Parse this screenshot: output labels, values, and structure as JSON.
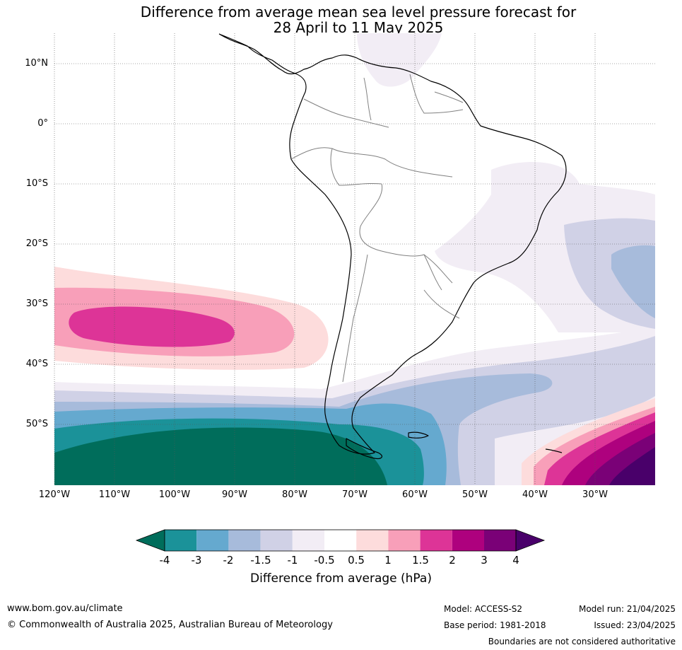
{
  "title": {
    "line1": "Difference from average mean sea level pressure forecast for",
    "line2": "28 April to 11 May 2025"
  },
  "map": {
    "latitude_labels": [
      "10°N",
      "0°",
      "10°S",
      "20°S",
      "30°S",
      "40°S",
      "50°S"
    ],
    "longitude_labels": [
      "120°W",
      "110°W",
      "100°W",
      "90°W",
      "80°W",
      "70°W",
      "60°W",
      "50°W",
      "40°W",
      "30°W"
    ]
  },
  "colorbar": {
    "tick_labels": [
      "-4",
      "-3",
      "-2",
      "-1.5",
      "-1",
      "-0.5",
      "0.5",
      "1",
      "1.5",
      "2",
      "3",
      "4"
    ],
    "colors": {
      "below_-4": "#006d5b",
      "-4_to_-3": "#1b9299",
      "-3_to_-2": "#65a9cf",
      "-2_to_-1.5": "#a7bbdb",
      "-1.5_to_-1": "#d0d1e6",
      "-1_to_-0.5": "#f2edf5",
      "-0.5_to_0.5": "#ffffff",
      "0.5_to_1": "#fddcdc",
      "1_to_1.5": "#f89fb9",
      "1.5_to_2": "#dd3497",
      "2_to_3": "#ae017e",
      "3_to_4": "#7a0177",
      "above_4": "#49006a"
    },
    "label": "Difference from average (hPa)"
  },
  "footer": {
    "url": "www.bom.gov.au/climate",
    "copyright": "© Commonwealth of Australia 2025, Australian Bureau of Meteorology",
    "model": "Model: ACCESS-S2",
    "base_period": "Base period: 1981-2018",
    "model_run": "Model run: 21/04/2025",
    "issued": "Issued: 23/04/2025",
    "boundaries": "Boundaries are not considered authoritative"
  }
}
